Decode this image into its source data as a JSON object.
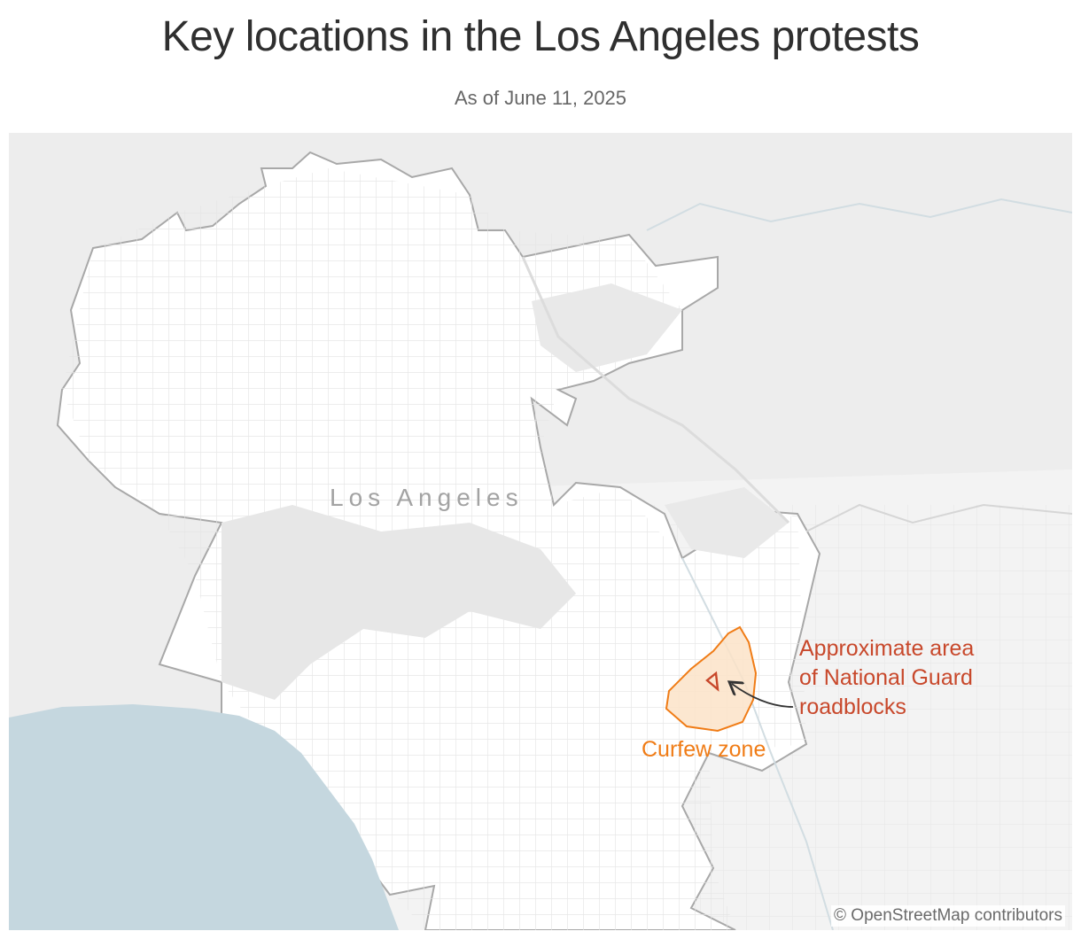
{
  "header": {
    "title": "Key locations in the Los Angeles protests",
    "subtitle": "As of June 11, 2025"
  },
  "map": {
    "city_label": "Los Angeles",
    "curfew_label": "Curfew zone",
    "guard_label_lines": [
      "Approximate area",
      "of National Guard",
      "roadblocks"
    ],
    "attribution": "© OpenStreetMap contributors",
    "colors": {
      "land": "#ededed",
      "city": "#ffffff",
      "ocean": "#c5d7df",
      "boundary": "#a8a8a8",
      "streets": "#e3e3e3",
      "curfew_fill": "#fbe3c8",
      "curfew_stroke": "#f07c16",
      "guard": "#c8482b",
      "arrow": "#333333"
    }
  }
}
